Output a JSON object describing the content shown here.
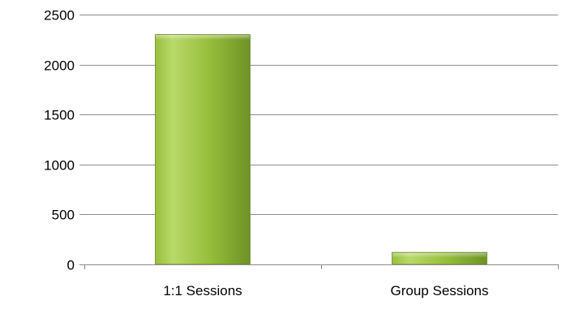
{
  "chart_data": {
    "type": "bar",
    "title": "",
    "xlabel": "",
    "ylabel": "",
    "categories": [
      "1:1 Sessions",
      "Group Sessions"
    ],
    "values": [
      2300,
      120
    ],
    "ylim": [
      0,
      2500
    ],
    "yticks": [
      0,
      500,
      1000,
      1500,
      2000,
      2500
    ],
    "grid": true,
    "legend": "none",
    "colors": {
      "bar_light": "#b9d86a",
      "bar_mid": "#98bf3d",
      "bar_dark": "#6f9225",
      "bar_edge": "#5f7f1f",
      "gridline": "#8c8c8c",
      "axis": "#8c8c8c"
    }
  }
}
